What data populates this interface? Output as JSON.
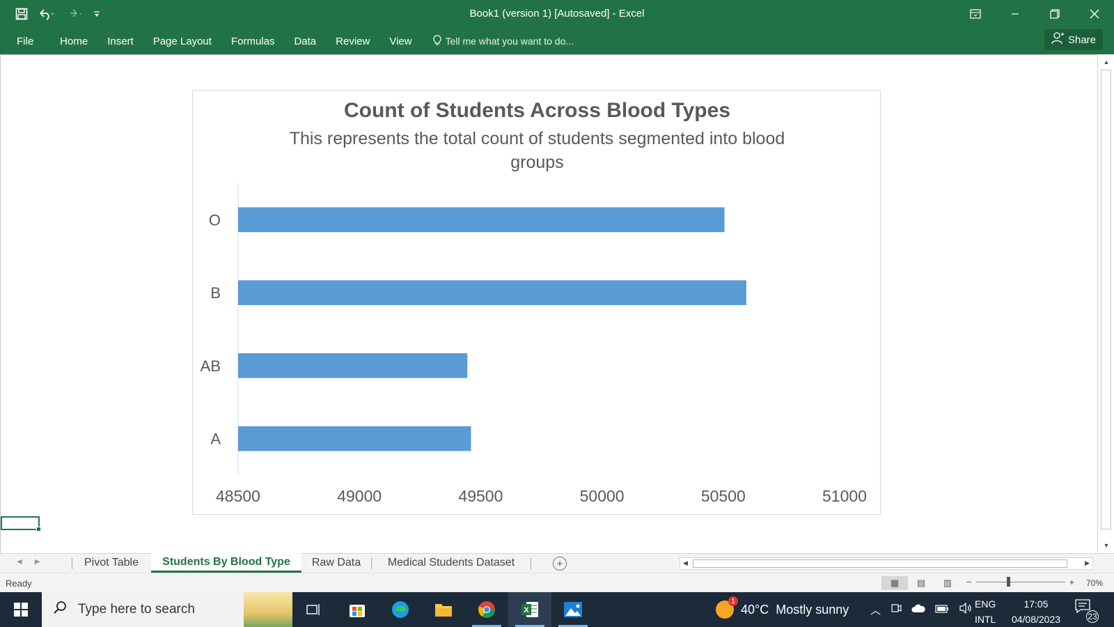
{
  "window": {
    "title": "Book1 (version 1) [Autosaved] - Excel"
  },
  "ribbon": {
    "tabs": [
      "File",
      "Home",
      "Insert",
      "Page Layout",
      "Formulas",
      "Data",
      "Review",
      "View"
    ],
    "tell_me": "Tell me what you want to do...",
    "share": "Share"
  },
  "chart_data": {
    "type": "bar",
    "orientation": "horizontal",
    "title": "Count of Students Across Blood Types",
    "subtitle": "This represents the total count of students segmented into blood groups",
    "categories": [
      "O",
      "B",
      "AB",
      "A"
    ],
    "values": [
      50505,
      50595,
      49445,
      49460
    ],
    "xlim": [
      48500,
      51000
    ],
    "xticks": [
      "48500",
      "49000",
      "49500",
      "50000",
      "50500",
      "51000"
    ],
    "bar_color": "#5b9bd5",
    "grid": false,
    "legend": "none"
  },
  "sheet_tabs": {
    "tabs": [
      "Pivot Table",
      "Students By Blood Type",
      "Raw Data",
      "Medical Students Dataset"
    ],
    "active": "Students By Blood Type"
  },
  "status": {
    "text": "Ready",
    "zoom": "70%"
  },
  "taskbar": {
    "search_placeholder": "Type here to search",
    "weather_temp": "40°C",
    "weather_text": "Mostly sunny",
    "weather_badge": "1",
    "lang_top": "ENG",
    "lang_bottom": "INTL",
    "time": "17:05",
    "date": "04/08/2023",
    "notifications": "23"
  },
  "colors": {
    "excel_green": "#217346",
    "bar": "#5b9bd5",
    "taskbar": "#1c2a3a"
  }
}
